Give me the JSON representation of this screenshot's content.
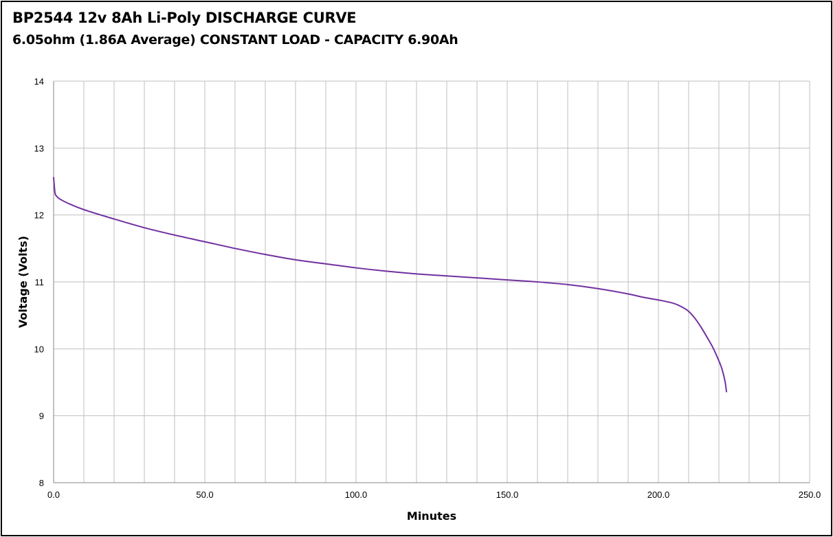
{
  "chart_data": {
    "type": "line",
    "title": "BP2544 12v 8Ah Li-Poly DISCHARGE CURVE",
    "subtitle": "6.05ohm (1.86A Average) CONSTANT LOAD - CAPACITY 6.90Ah",
    "xlabel": "Minutes",
    "ylabel": "Voltage (Volts)",
    "xlim": [
      0,
      250
    ],
    "ylim": [
      8,
      14
    ],
    "x_ticks": [
      0,
      50,
      100,
      150,
      200,
      250
    ],
    "x_tick_labels": [
      "0.0",
      "50.0",
      "100.0",
      "150.0",
      "200.0",
      "250.0"
    ],
    "x_minor_gridlines": [
      10,
      20,
      30,
      40,
      60,
      70,
      80,
      90,
      110,
      120,
      130,
      140,
      160,
      170,
      180,
      190,
      210,
      220,
      230,
      240
    ],
    "y_ticks": [
      8,
      9,
      10,
      11,
      12,
      13,
      14
    ],
    "y_tick_labels": [
      "8",
      "9",
      "10",
      "11",
      "12",
      "13",
      "14"
    ],
    "grid": true,
    "legend": "none",
    "series": [
      {
        "color": "#7030A0",
        "x": [
          0,
          0.2,
          0.5,
          1,
          2,
          5,
          10,
          20,
          30,
          40,
          50,
          60,
          70,
          80,
          90,
          100,
          110,
          120,
          130,
          140,
          150,
          160,
          170,
          180,
          190,
          195,
          200,
          205,
          208,
          210,
          212,
          214,
          216,
          218,
          220,
          221,
          222,
          222.5
        ],
        "y": [
          12.56,
          12.45,
          12.32,
          12.28,
          12.24,
          12.17,
          12.08,
          11.94,
          11.81,
          11.7,
          11.6,
          11.5,
          11.41,
          11.33,
          11.27,
          11.21,
          11.16,
          11.12,
          11.09,
          11.06,
          11.03,
          11.0,
          10.96,
          10.9,
          10.82,
          10.77,
          10.73,
          10.68,
          10.62,
          10.56,
          10.46,
          10.33,
          10.18,
          10.02,
          9.82,
          9.7,
          9.52,
          9.36
        ]
      }
    ]
  }
}
